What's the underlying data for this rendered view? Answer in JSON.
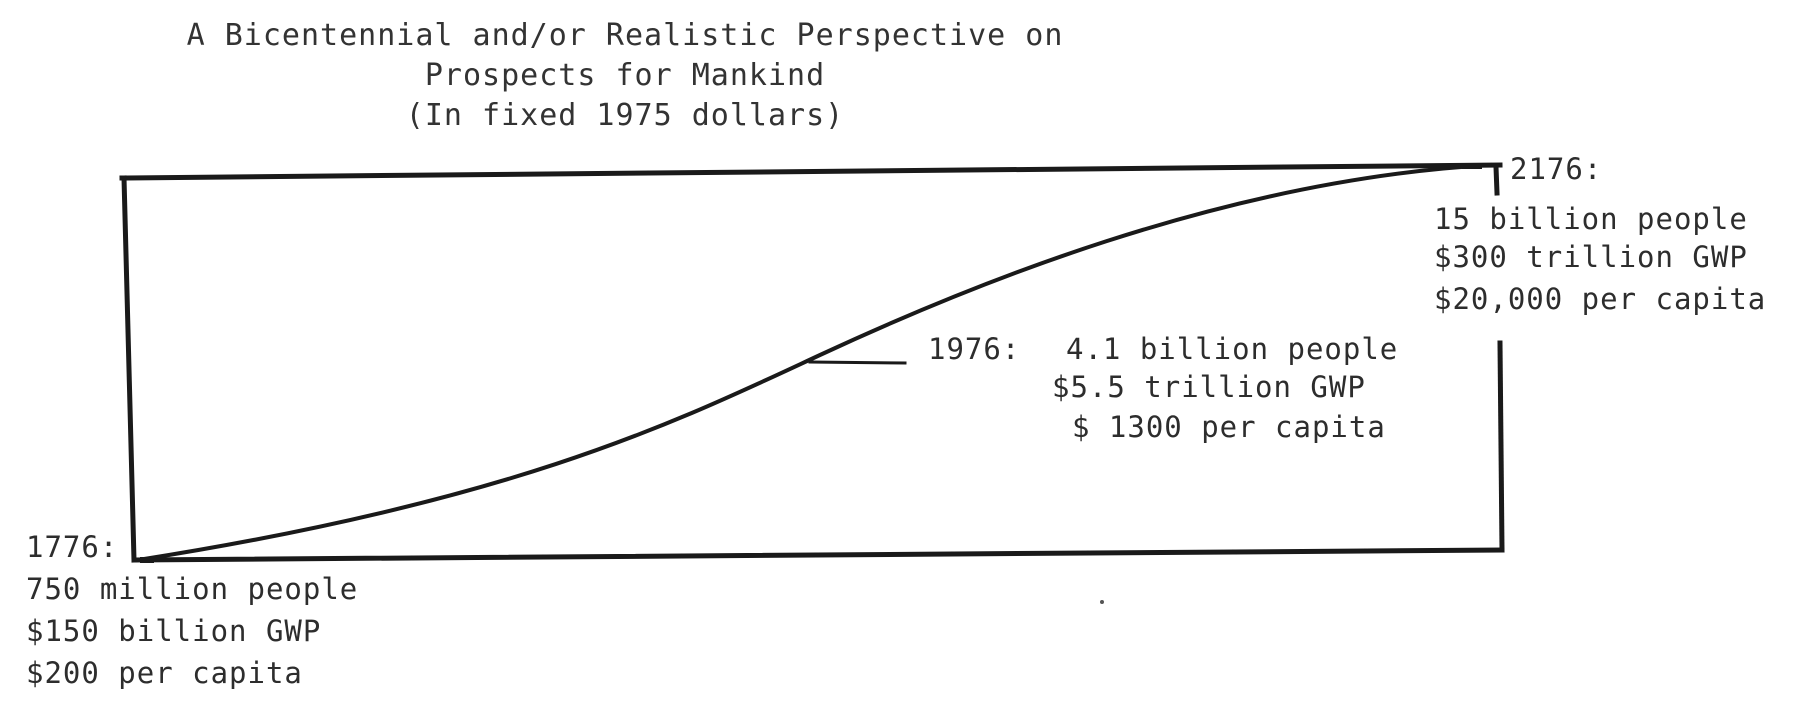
{
  "title": {
    "line1": "A Bicentennial and/or Realistic Perspective on",
    "line2": "Prospects for Mankind",
    "line3": "(In fixed 1975 dollars)"
  },
  "start_point": {
    "year": "1776:",
    "people": "750 million people",
    "gwp": "$150 billion GWP",
    "per_capita": "$200 per capita"
  },
  "mid_point": {
    "year": "1976:",
    "people": "4.1 billion people",
    "gwp": "$5.5 trillion GWP",
    "per_capita": "$ 1300 per capita"
  },
  "end_point": {
    "year": "2176:",
    "people": "15 billion people",
    "gwp": "$300 trillion GWP",
    "per_capita": "$20,000 per capita"
  },
  "colors": {
    "ink": "#1a1a1a",
    "text": "#2d2d2d",
    "background": "#ffffff"
  }
}
